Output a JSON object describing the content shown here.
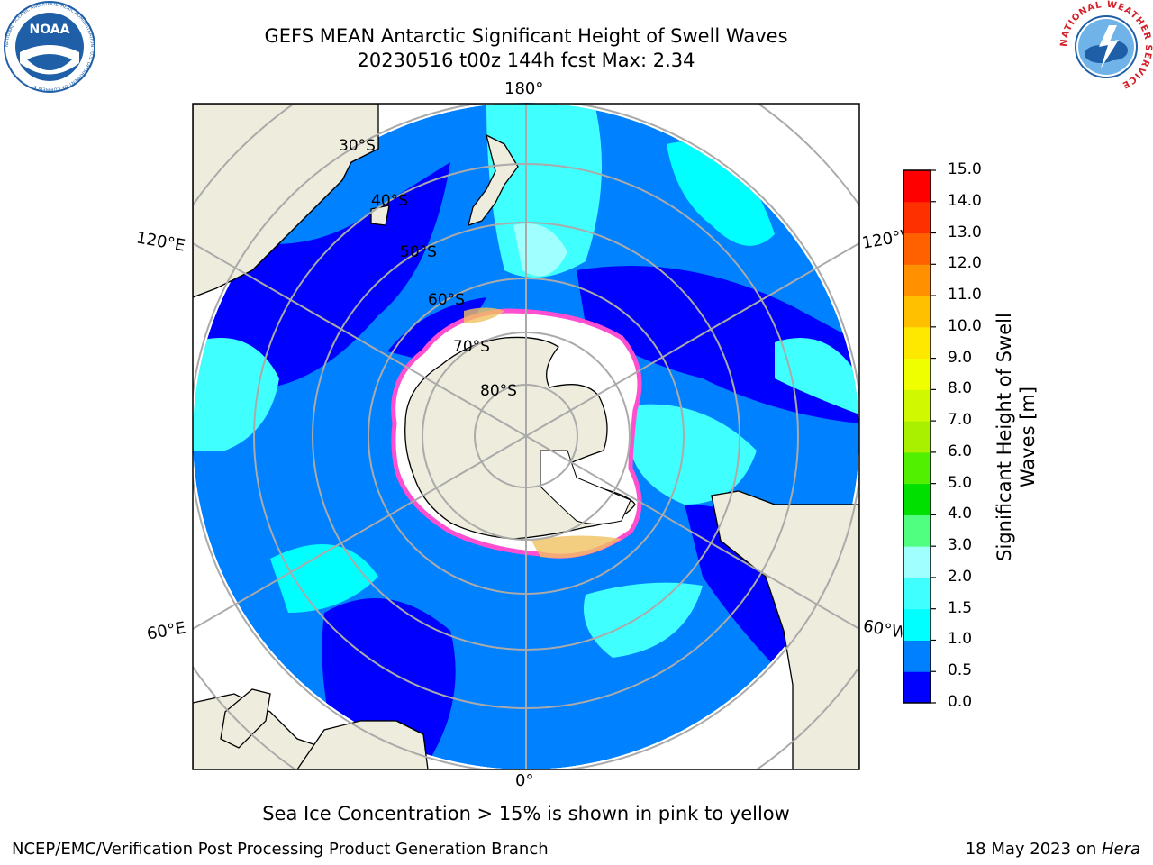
{
  "header": {
    "title_line1": "GEFS MEAN Antarctic Significant Height of Swell Waves",
    "title_line2": "20230516 t00z 144h fcst   Max: 2.34"
  },
  "logos": {
    "noaa": {
      "center_text": "NOAA",
      "ring_text": "NATIONAL OCEANIC AND ATMOSPHERIC ADMINISTRATION · U.S. DEPARTMENT OF COMMERCE",
      "color": "#1f5fa8"
    },
    "nws": {
      "ring_text": "NATIONAL WEATHER SERVICE",
      "color": "#d4202a"
    }
  },
  "map": {
    "projection": "south-polar-stereographic",
    "longitude_labels": {
      "top": "180°",
      "bottom": "0°",
      "left_upper": "120°E",
      "left_lower": "60°E",
      "right_upper": "120°W",
      "right_lower": "60°W"
    },
    "latitude_labels": [
      "30°S",
      "40°S",
      "50°S",
      "60°S",
      "70°S",
      "80°S"
    ],
    "land_color": "#eeecdc",
    "ocean_color": "#0081ff",
    "ice_color": "#ffffff",
    "ice_edge_color": "#ff4fd0"
  },
  "colorbar": {
    "label": "Significant Height of Swell Waves [m]",
    "ticks": [
      "0.0",
      "0.5",
      "1.0",
      "1.5",
      "2.0",
      "3.0",
      "4.0",
      "5.0",
      "6.0",
      "7.0",
      "8.0",
      "9.0",
      "10.0",
      "11.0",
      "12.0",
      "13.0",
      "14.0",
      "15.0"
    ],
    "colors": [
      "#0000ff",
      "#0080ff",
      "#00ffff",
      "#40ffff",
      "#a0ffff",
      "#50ff80",
      "#00e000",
      "#50f000",
      "#a8f000",
      "#d0f800",
      "#f0ff00",
      "#ffe800",
      "#ffc000",
      "#ff9000",
      "#ff6000",
      "#ff3000",
      "#ff0000"
    ]
  },
  "captions": {
    "sea_ice": "Sea Ice Concentration > 15% is shown in pink to yellow",
    "left_footer": "NCEP/EMC/Verification Post Processing Product Generation Branch",
    "right_footer_prefix": "18 May 2023 on ",
    "right_footer_host": "Hera"
  }
}
